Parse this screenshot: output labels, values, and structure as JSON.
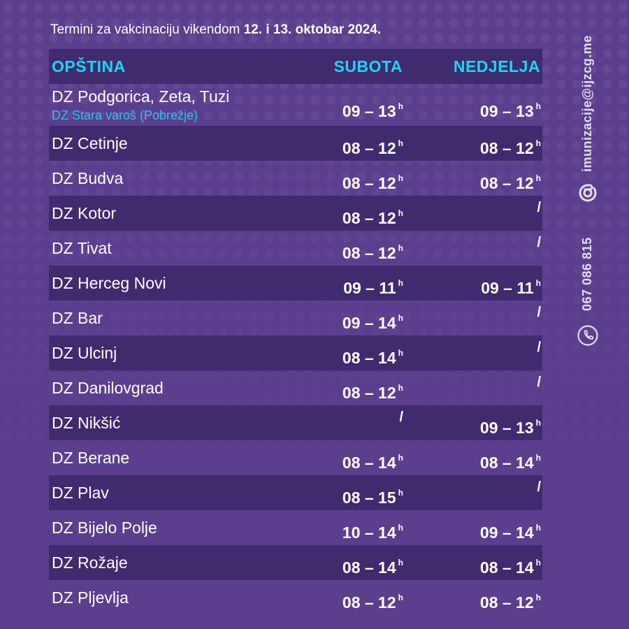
{
  "header": {
    "intro": "Termini za vakcinaciju vikendom ",
    "dates": "12. i 13. oktobar 2024."
  },
  "table": {
    "columns": [
      "OPŠTINA",
      "SUBOTA",
      "NEDJELJA"
    ],
    "hour_suffix": "h",
    "rows": [
      {
        "name": "DZ Podgorica, Zeta, Tuzi",
        "sub": "DZ Stara varoš (Pobrežje)",
        "sat": "09 – 13",
        "sun": "09 – 13"
      },
      {
        "name": "DZ Cetinje",
        "sat": "08 – 12",
        "sun": "08 – 12"
      },
      {
        "name": "DZ Budva",
        "sat": "08 – 12",
        "sun": "08 – 12"
      },
      {
        "name": "DZ Kotor",
        "sat": "08 – 12",
        "sun": "/"
      },
      {
        "name": "DZ Tivat",
        "sat": "08 – 12",
        "sun": "/"
      },
      {
        "name": "DZ Herceg Novi",
        "sat": "09 – 11",
        "sun": "09 – 11"
      },
      {
        "name": "DZ Bar",
        "sat": "09 – 14",
        "sun": "/"
      },
      {
        "name": "DZ Ulcinj",
        "sat": "08 – 14",
        "sun": "/"
      },
      {
        "name": "DZ Danilovgrad",
        "sat": "08 – 12",
        "sun": "/"
      },
      {
        "name": "DZ Nikšić",
        "sat": "/",
        "sun": "09 – 13"
      },
      {
        "name": "DZ Berane",
        "sat": "08 – 14",
        "sun": "08 – 14"
      },
      {
        "name": "DZ Plav",
        "sat": "08 – 15",
        "sun": "/"
      },
      {
        "name": "DZ Bijelo Polje",
        "sat": "10 – 14",
        "sun": "09 – 14"
      },
      {
        "name": "DZ Rožaje",
        "sat": "08 – 14",
        "sun": "08 – 14"
      },
      {
        "name": "DZ Pljevlja",
        "sat": "08 – 12",
        "sun": "08 – 12"
      }
    ]
  },
  "contact": {
    "email": "imunizacije@ijzcg.me",
    "phone": "067 086 815",
    "email_icon": "at-icon",
    "phone_icon": "phone-icon"
  },
  "colors": {
    "background": "#5b3f8e",
    "row_dark": "#3f2b6e",
    "accent": "#1ad6f5"
  }
}
